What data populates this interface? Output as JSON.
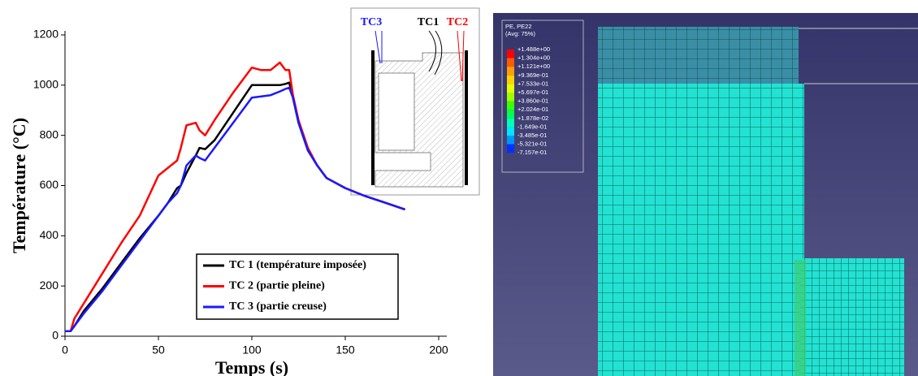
{
  "chart_data": {
    "type": "line",
    "xlabel": "Temps (s)",
    "ylabel": "Température (°C)",
    "x": [
      0,
      3,
      5,
      10,
      20,
      30,
      40,
      50,
      55,
      60,
      62,
      65,
      70,
      72,
      75,
      80,
      90,
      100,
      105,
      110,
      115,
      118,
      120,
      122,
      125,
      130,
      135,
      140,
      150,
      160,
      170,
      182
    ],
    "series": [
      {
        "name": "TC 1 (température imposée)",
        "color": "#000000",
        "values": [
          20,
          20,
          40,
          100,
          190,
          290,
          390,
          480,
          530,
          590,
          600,
          650,
          720,
          750,
          745,
          780,
          890,
          1000,
          1000,
          1000,
          1000,
          1005,
          1010,
          950,
          850,
          740,
          680,
          630,
          590,
          560,
          535,
          505
        ]
      },
      {
        "name": "TC 2 (partie pleine)",
        "color": "#ff0000",
        "values": [
          20,
          20,
          70,
          130,
          250,
          370,
          480,
          640,
          670,
          700,
          750,
          840,
          850,
          820,
          800,
          860,
          970,
          1070,
          1060,
          1060,
          1090,
          1060,
          1060,
          960,
          860,
          750,
          680,
          630,
          590,
          560,
          535,
          505
        ]
      },
      {
        "name": "TC 3 (partie creuse)",
        "color": "#1a1aff",
        "values": [
          20,
          20,
          40,
          90,
          180,
          280,
          380,
          480,
          530,
          570,
          600,
          680,
          720,
          710,
          700,
          750,
          850,
          950,
          955,
          960,
          975,
          985,
          990,
          950,
          850,
          740,
          680,
          630,
          590,
          560,
          535,
          505
        ]
      }
    ],
    "xlim": [
      0,
      200
    ],
    "xticks": [
      0,
      50,
      100,
      150,
      200
    ],
    "ylim": [
      0,
      1200
    ],
    "yticks": [
      0,
      200,
      400,
      600,
      800,
      1000,
      1200
    ],
    "legend": "lower right",
    "inset": {
      "labels": [
        {
          "text": "TC3",
          "color": "#1a1aff"
        },
        {
          "text": "TC1",
          "color": "#000000"
        },
        {
          "text": "TC2",
          "color": "#ff0000"
        }
      ]
    }
  },
  "fem_legend": {
    "title": "PE, PE22",
    "subtitle": "(Avg: 75%)",
    "values": [
      "+1.488e+00",
      "+1.304e+00",
      "+1.121e+00",
      "+9.369e-01",
      "+7.533e-01",
      "+5.697e-01",
      "+3.860e-01",
      "+2.024e-01",
      "+1.878e-02",
      "-1.649e-01",
      "-3.485e-01",
      "-5.321e-01",
      "-7.157e-01"
    ],
    "colors": [
      "#ff0000",
      "#ff5a00",
      "#ffa000",
      "#ffd200",
      "#e6ff00",
      "#a0ff00",
      "#3cff00",
      "#00ff50",
      "#00ffb4",
      "#00e6ff",
      "#0096ff",
      "#0032ff",
      "#0000c8"
    ]
  }
}
